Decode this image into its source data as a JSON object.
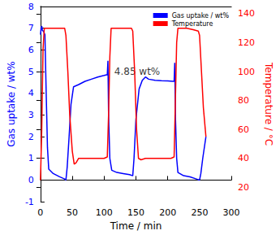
{
  "chart_data": {
    "type": "line",
    "x_label": "Time / min",
    "y_label": "Gas uptake / wt%",
    "y2_label": "Temperature / °C",
    "xlim": [
      0,
      300
    ],
    "xticks": [
      0,
      50,
      100,
      150,
      200,
      250,
      300
    ],
    "ylim": [
      -1,
      8
    ],
    "yticks": [
      -1,
      0,
      1,
      2,
      3,
      4,
      5,
      6,
      7,
      8
    ],
    "y2lim": [
      10,
      145
    ],
    "y2ticks": [
      20,
      40,
      60,
      80,
      100,
      120,
      140
    ],
    "grid": false,
    "legend": "upper right",
    "series": [
      {
        "name": "Gas uptake / wt%",
        "color": "#0000ff",
        "axis": "y",
        "x": [
          0,
          1,
          2,
          3,
          5,
          7,
          9,
          11,
          13,
          20,
          30,
          38,
          40,
          42,
          45,
          48,
          52,
          60,
          70,
          80,
          90,
          100,
          104,
          105,
          106,
          107,
          109,
          112,
          120,
          130,
          140,
          145,
          147,
          150,
          155,
          160,
          165,
          170,
          180,
          190,
          200,
          208,
          210,
          211,
          212,
          214,
          216,
          225,
          235,
          245,
          250,
          252,
          255,
          258,
          260
        ],
        "values": [
          6.7,
          7.0,
          7.1,
          6.9,
          6.85,
          6.7,
          4.0,
          1.5,
          0.5,
          0.3,
          0.15,
          0.05,
          0.0,
          0.6,
          2.0,
          3.5,
          4.3,
          4.4,
          4.55,
          4.65,
          4.75,
          4.82,
          4.85,
          4.85,
          5.5,
          3.0,
          1.0,
          0.45,
          0.35,
          0.3,
          0.25,
          0.2,
          1.0,
          2.8,
          4.2,
          4.6,
          4.75,
          4.65,
          4.6,
          4.58,
          4.57,
          4.55,
          4.55,
          5.4,
          3.0,
          1.0,
          0.35,
          0.2,
          0.15,
          0.05,
          0.0,
          0.3,
          1.0,
          1.6,
          2.0
        ]
      },
      {
        "name": "Temperature",
        "color": "#ff0000",
        "axis": "y2",
        "x": [
          0,
          2,
          4,
          6,
          10,
          20,
          30,
          38,
          40,
          43,
          46,
          50,
          53,
          56,
          60,
          70,
          80,
          90,
          100,
          105,
          107,
          109,
          111,
          115,
          125,
          135,
          143,
          145,
          148,
          151,
          154,
          158,
          165,
          180,
          195,
          205,
          210,
          212,
          214,
          216,
          220,
          230,
          240,
          248,
          250,
          253,
          256,
          260
        ],
        "values": [
          25,
          60,
          115,
          130,
          130,
          130,
          130,
          130,
          125,
          100,
          70,
          45,
          36,
          37,
          40,
          40,
          40,
          40,
          40,
          41,
          70,
          110,
          130,
          130,
          130,
          130,
          130,
          128,
          100,
          60,
          40,
          39,
          40,
          40,
          40,
          40,
          41,
          80,
          120,
          130,
          130,
          130,
          129,
          128,
          125,
          100,
          75,
          55
        ]
      }
    ],
    "annotations": [
      {
        "text": "4.85 wt%",
        "x": 152,
        "y": 5.0
      }
    ]
  }
}
